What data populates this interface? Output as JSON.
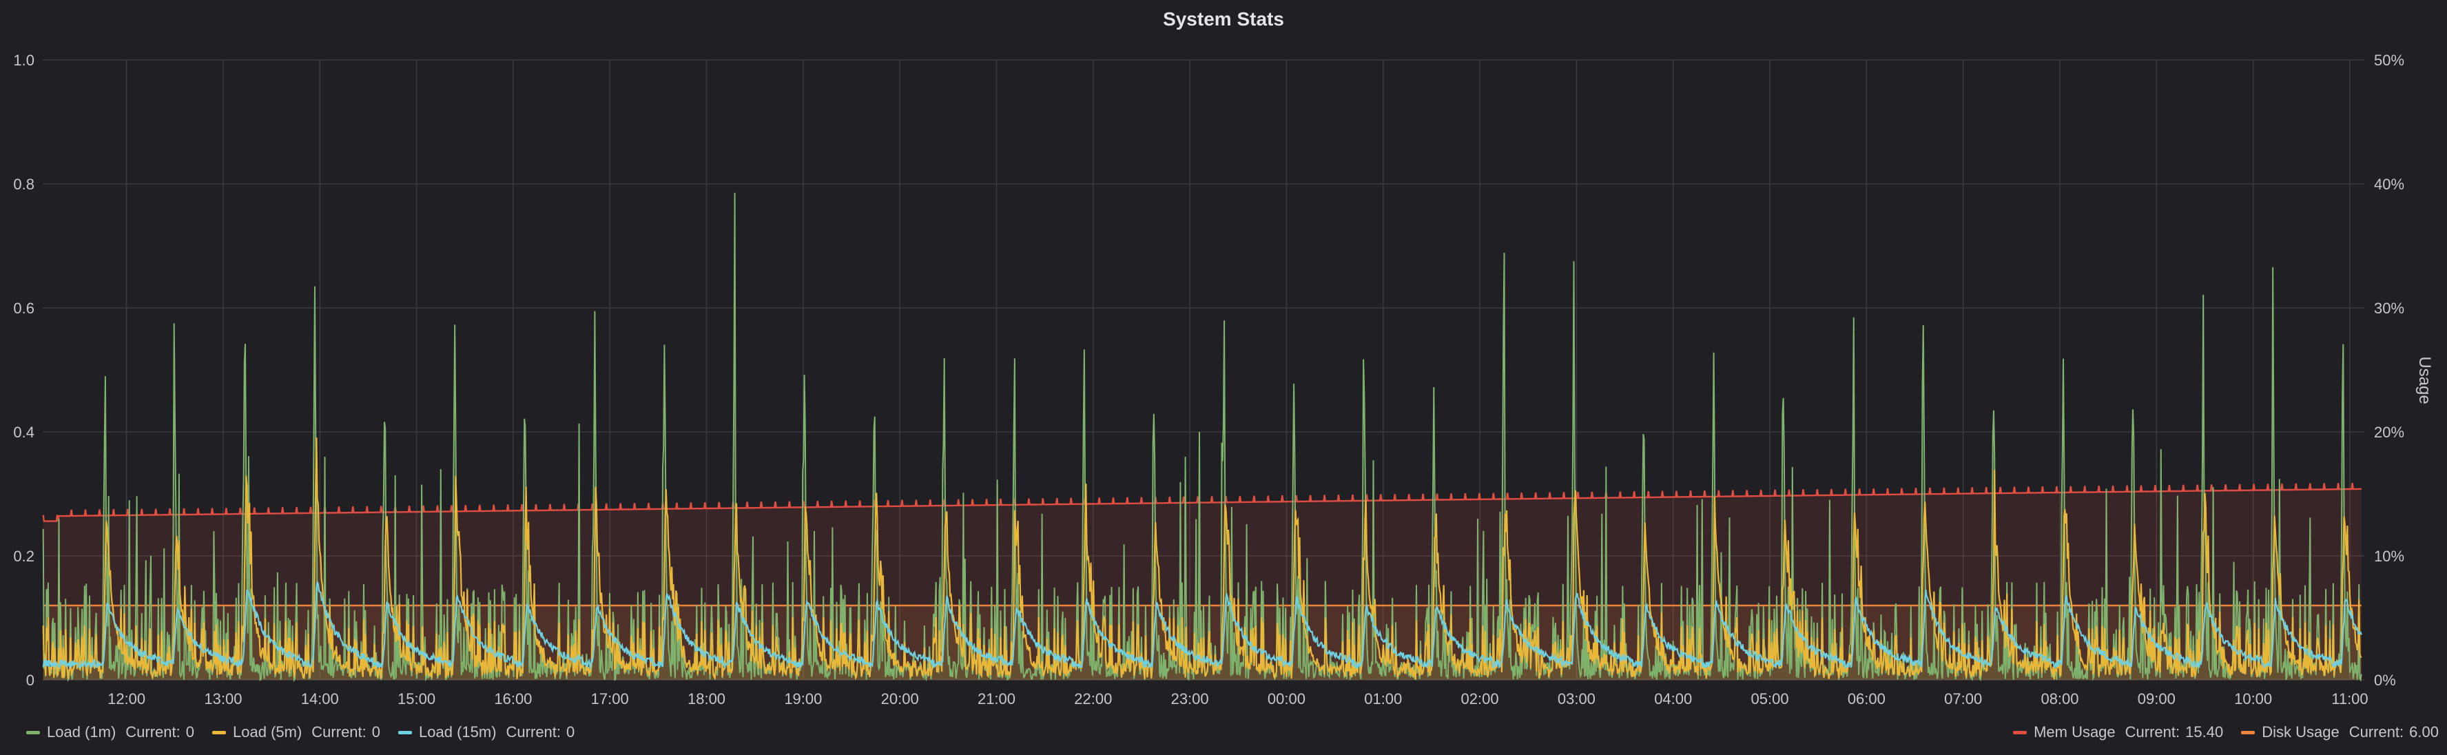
{
  "panel": {
    "title": "System Stats"
  },
  "chart_data": {
    "type": "line",
    "title": "System Stats",
    "x_ticks": [
      "12:00",
      "13:00",
      "14:00",
      "15:00",
      "16:00",
      "17:00",
      "18:00",
      "19:00",
      "20:00",
      "21:00",
      "22:00",
      "23:00",
      "00:00",
      "01:00",
      "02:00",
      "03:00",
      "04:00",
      "05:00",
      "06:00",
      "07:00",
      "08:00",
      "09:00",
      "10:00",
      "11:00"
    ],
    "x_range_hours": [
      11.1333,
      35.15
    ],
    "y_left": {
      "ticks": [
        "0",
        "0.2",
        "0.4",
        "0.6",
        "0.8",
        "1.0"
      ],
      "range": [
        0,
        1.0
      ]
    },
    "y_right": {
      "label": "Usage",
      "ticks": [
        "0%",
        "10%",
        "20%",
        "30%",
        "40%",
        "50%"
      ],
      "range": [
        0,
        50
      ]
    },
    "grid": true,
    "spike_peaks_load1": [
      0.5,
      0.46,
      0.63,
      0.67,
      0.5,
      0.58,
      0.5,
      0.48,
      0.6,
      0.5,
      0.53,
      0.5,
      0.53,
      0.47,
      0.53,
      0.49,
      0.57,
      0.54,
      0.48,
      0.48,
      0.51,
      0.58,
      0.48,
      0.52,
      0.5,
      0.52,
      0.59,
      0.48,
      0.55,
      0.47,
      0.5,
      0.52,
      0.53
    ],
    "series": [
      {
        "name": "Load (1m)",
        "axis": "left",
        "color": "#7eb26d",
        "current": "0",
        "typical_spike": 0.52
      },
      {
        "name": "Load (5m)",
        "axis": "left",
        "color": "#eab839",
        "current": "0",
        "typical_spike": 0.27
      },
      {
        "name": "Load (15m)",
        "axis": "left",
        "color": "#6ed0e0",
        "current": "0",
        "typical_spike": 0.11
      },
      {
        "name": "Mem Usage",
        "axis": "right",
        "color": "#e24d42",
        "current": "15.40",
        "start": 13.2,
        "end": 15.4
      },
      {
        "name": "Disk Usage",
        "axis": "right",
        "color": "#ef843c",
        "current": "6.00",
        "value": 6.0
      }
    ],
    "legend_position": "bottom"
  },
  "legend": {
    "current_label": "Current:",
    "left": [
      {
        "name": "Load (1m)",
        "color": "#7eb26d",
        "current": "0"
      },
      {
        "name": "Load (5m)",
        "color": "#eab839",
        "current": "0"
      },
      {
        "name": "Load (15m)",
        "color": "#6ed0e0",
        "current": "0"
      }
    ],
    "right": [
      {
        "name": "Mem Usage",
        "color": "#e24d42",
        "current": "15.40"
      },
      {
        "name": "Disk Usage",
        "color": "#ef843c",
        "current": "6.00"
      }
    ]
  }
}
